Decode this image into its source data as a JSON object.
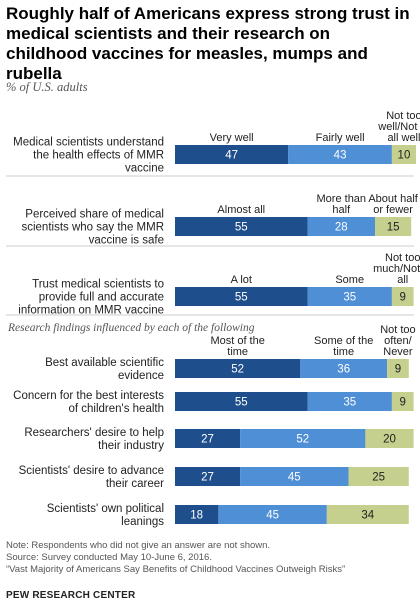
{
  "title": "Roughly half of Americans express strong trust in medical scientists and their research on childhood vaccines for measles, mumps and rubella",
  "subtitle": "% of U.S. adults",
  "section_note": "Research findings influenced by each of the following",
  "footer": {
    "note": "Note: Respondents who did not give an answer are not shown.",
    "source": "Source: Survey conducted May 10-June 6, 2016.",
    "report": "“Vast Majority of Americans Say Benefits of Childhood Vaccines Outweigh Risks”",
    "brand": "PEW RESEARCH CENTER"
  },
  "colors": {
    "dark": "#1f4e8c",
    "mid": "#4f8fd6",
    "light": "#c5cf8e",
    "divider": "#cccccc"
  },
  "chart_data": {
    "type": "bar",
    "stacked": true,
    "orientation": "horizontal",
    "groups": [
      {
        "column_headers": [
          "Very well",
          "Fairly well",
          "Not too well/Not at all well"
        ],
        "rows": [
          {
            "label": "Medical scientists understand the health effects of MMR vaccine",
            "values": [
              47,
              43,
              10
            ]
          }
        ]
      },
      {
        "column_headers": [
          "Almost all",
          "More than half",
          "About half or fewer"
        ],
        "rows": [
          {
            "label": "Perceived share of medical scientists who say the MMR vaccine is safe",
            "values": [
              55,
              28,
              15
            ]
          }
        ]
      },
      {
        "column_headers": [
          "A lot",
          "Some",
          "Not too much/Not at all"
        ],
        "rows": [
          {
            "label": "Trust medical scientists to provide full and accurate information on MMR vaccine",
            "values": [
              55,
              35,
              9
            ]
          }
        ]
      },
      {
        "column_headers": [
          "Most of the time",
          "Some of the time",
          "Not too often/ Never"
        ],
        "rows": [
          {
            "label": "Best available scientific evidence",
            "values": [
              52,
              36,
              9
            ]
          },
          {
            "label": "Concern for the best interests of children's health",
            "values": [
              55,
              35,
              9
            ]
          },
          {
            "label": "Researchers' desire to help their industry",
            "values": [
              27,
              52,
              20
            ]
          },
          {
            "label": "Scientists' desire to advance their career",
            "values": [
              27,
              45,
              25
            ]
          },
          {
            "label": "Scientists' own political leanings",
            "values": [
              18,
              45,
              34
            ]
          }
        ]
      }
    ]
  }
}
